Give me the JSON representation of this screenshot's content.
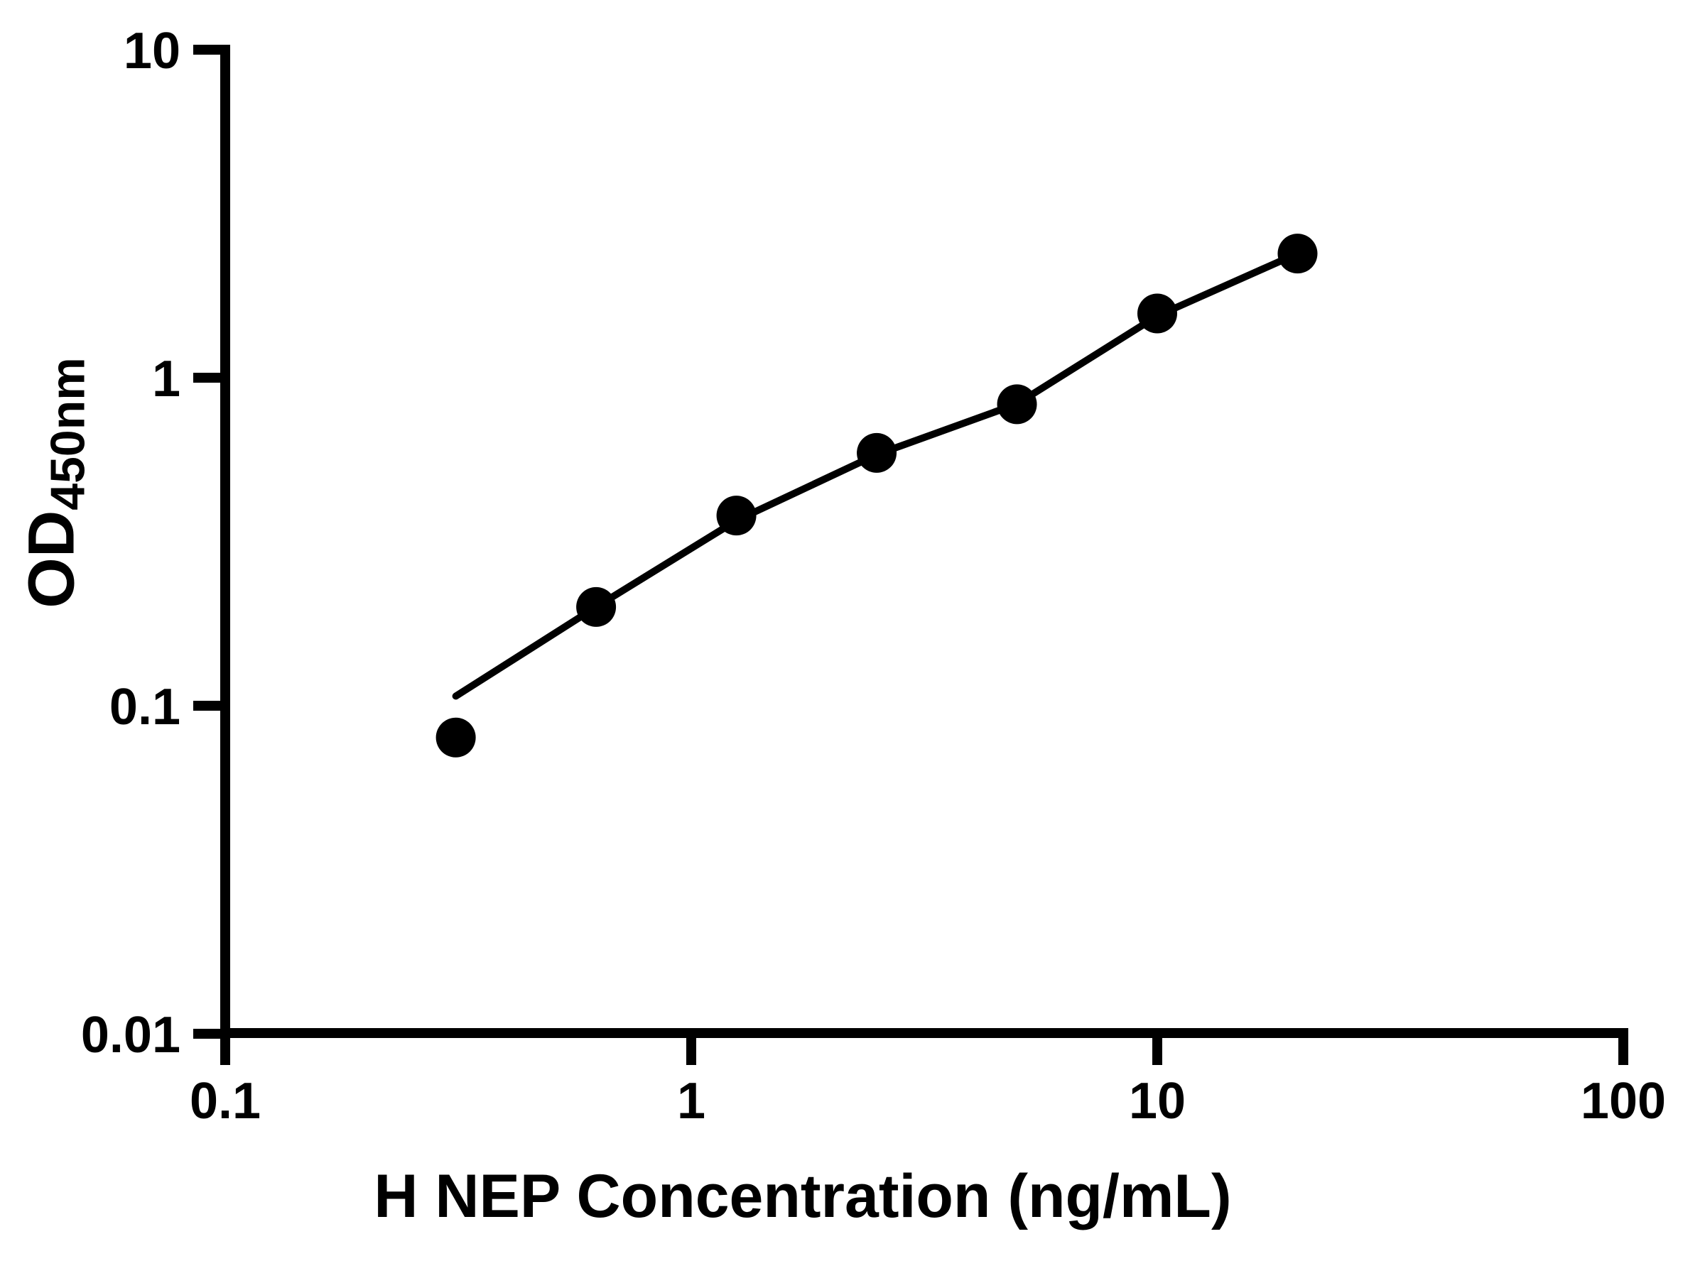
{
  "chart_data": {
    "type": "scatter",
    "title": "",
    "xlabel": "H NEP Concentration (ng/mL)",
    "ylabel": "OD450nm",
    "ylabel_main": "OD",
    "ylabel_sub": "450nm",
    "x_scale": "log",
    "y_scale": "log",
    "xlim": [
      0.1,
      100
    ],
    "ylim": [
      0.01,
      10
    ],
    "grid": false,
    "legend": "none",
    "x_ticks": [
      {
        "value": 0.1,
        "label": "0.1"
      },
      {
        "value": 1,
        "label": "1"
      },
      {
        "value": 10,
        "label": "10"
      },
      {
        "value": 100,
        "label": "100"
      }
    ],
    "y_ticks": [
      {
        "value": 10,
        "label": "10"
      },
      {
        "value": 1,
        "label": "1"
      },
      {
        "value": 0.1,
        "label": "0.1"
      },
      {
        "value": 0.01,
        "label": "0.01"
      }
    ],
    "series": [
      {
        "name": "standard-curve-points",
        "type": "scatter",
        "x": [
          0.3125,
          0.625,
          1.25,
          2.5,
          5,
          10,
          20
        ],
        "y": [
          0.08,
          0.2,
          0.38,
          0.59,
          0.83,
          1.57,
          2.39
        ]
      },
      {
        "name": "fit-line",
        "type": "line",
        "x": [
          0.3125,
          0.625,
          1.25,
          2.5,
          5,
          10,
          20
        ],
        "y": [
          0.107,
          0.2,
          0.367,
          0.583,
          0.832,
          1.543,
          2.392
        ]
      }
    ],
    "marker_color": "#000000",
    "line_color": "#000000",
    "axis_color": "#000000",
    "background": "#ffffff"
  }
}
